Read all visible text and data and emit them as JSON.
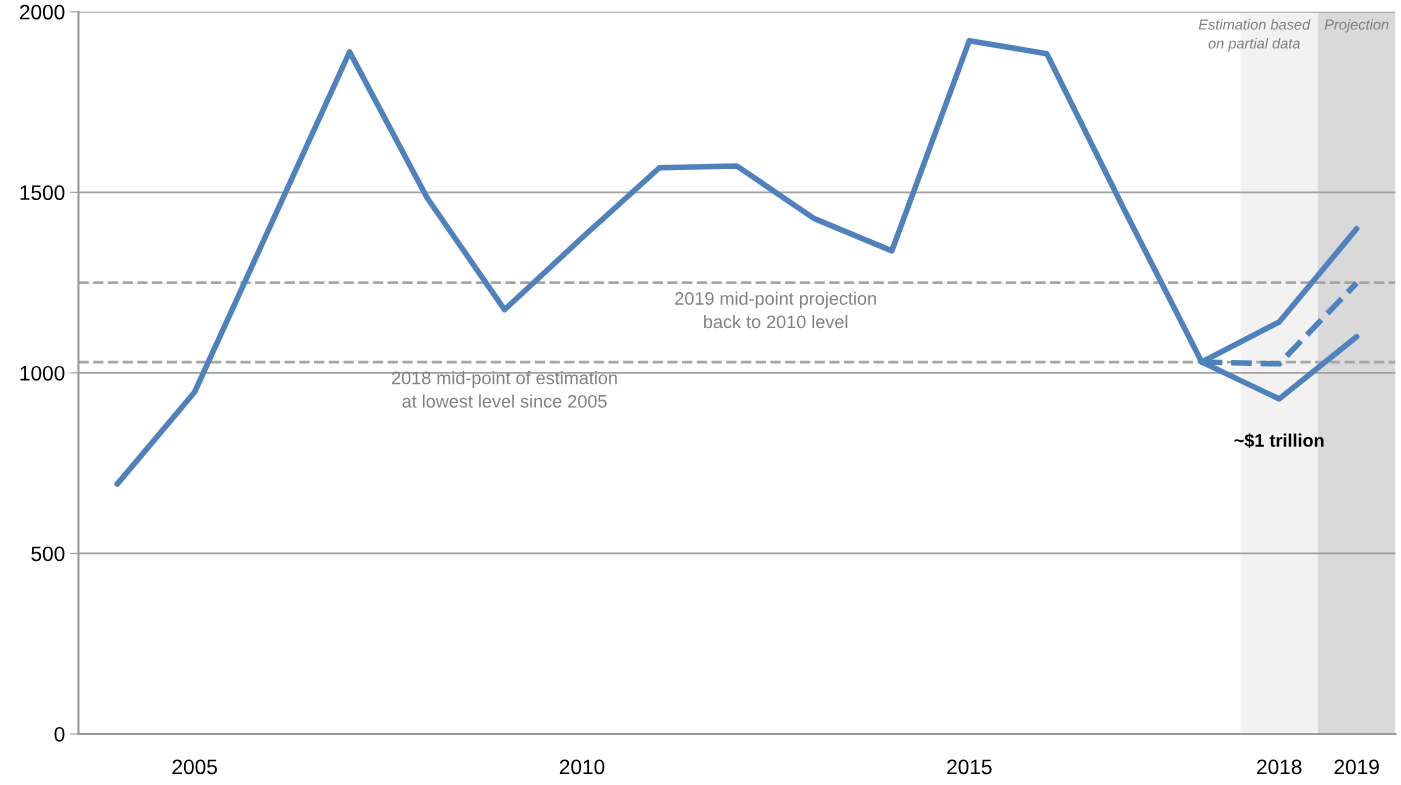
{
  "chart_data": {
    "type": "line",
    "categories": [
      null,
      "2005",
      null,
      null,
      null,
      null,
      "2010",
      null,
      null,
      null,
      null,
      "2015",
      null,
      null,
      null,
      "2018",
      "2019"
    ],
    "series": [
      {
        "color": "#4f81bd",
        "line_style": "solid",
        "values": [
          692,
          947,
          1418,
          1889,
          1485,
          1175,
          1374,
          1568,
          1573,
          1427,
          1338,
          1920,
          1884,
          1452,
          1030,
          null,
          null
        ]
      },
      {
        "color": "#4f81bd",
        "line_style": "solid",
        "values": [
          null,
          null,
          null,
          null,
          null,
          null,
          null,
          null,
          null,
          null,
          null,
          null,
          null,
          null,
          1030,
          1141,
          1399
        ]
      },
      {
        "color": "#4f81bd",
        "line_style": "dashed",
        "values": [
          null,
          null,
          null,
          null,
          null,
          null,
          null,
          null,
          null,
          null,
          null,
          null,
          null,
          null,
          1030,
          1025,
          1249
        ]
      },
      {
        "color": "#4f81bd",
        "line_style": "solid",
        "values": [
          null,
          null,
          null,
          null,
          null,
          null,
          null,
          null,
          null,
          null,
          null,
          null,
          null,
          null,
          1030,
          928,
          1100
        ]
      }
    ],
    "ylim": [
      0,
      2000
    ],
    "yticks": [
      0,
      500,
      1000,
      1500,
      2000
    ],
    "grid": "y",
    "marker": "none",
    "ref_lines": [
      {
        "axis": "y",
        "value": 1030,
        "label": "2018 mid-point of estimation\nat lowest level since 2005",
        "color": "#a6a6a6",
        "line_style": "dashed"
      },
      {
        "axis": "y",
        "value": 1250,
        "label": "2019 mid-point projection\nback to 2010 level",
        "color": "#a6a6a6",
        "line_style": "dashed"
      }
    ],
    "bands": [
      {
        "axis": "x",
        "from": "2018",
        "to": "2018",
        "label": "Estimation based\non partial data",
        "color": "#f2f2f2"
      },
      {
        "axis": "x",
        "from": "2019",
        "to": "2019",
        "label": "Projection",
        "color": "#d9d9d9"
      }
    ],
    "annotations": [
      {
        "text": "~$1 trillion",
        "x": "2018",
        "y": 928
      }
    ]
  }
}
